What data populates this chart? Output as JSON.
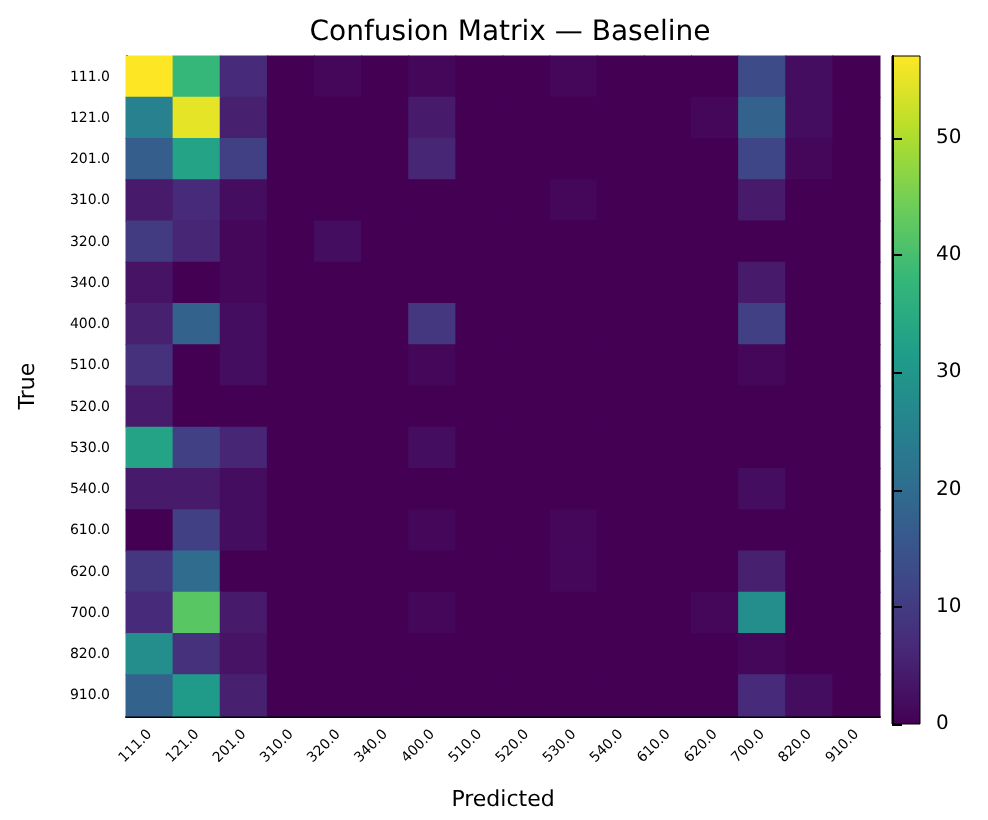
{
  "chart_data": {
    "type": "heatmap",
    "title": "Confusion Matrix — Baseline",
    "xlabel": "Predicted",
    "ylabel": "True",
    "categories": [
      "111.0",
      "121.0",
      "201.0",
      "310.0",
      "320.0",
      "340.0",
      "400.0",
      "510.0",
      "520.0",
      "530.0",
      "540.0",
      "610.0",
      "620.0",
      "700.0",
      "820.0",
      "910.0"
    ],
    "y_categories": [
      "111.0",
      "121.0",
      "201.0",
      "310.0",
      "320.0",
      "340.0",
      "400.0",
      "510.0",
      "520.0",
      "530.0",
      "540.0",
      "610.0",
      "620.0",
      "700.0",
      "820.0",
      "910.0"
    ],
    "cells": [
      [
        57,
        38,
        7,
        0,
        1,
        0,
        1,
        0,
        0,
        1,
        0,
        0,
        0,
        13,
        2,
        0
      ],
      [
        25,
        55,
        5,
        0,
        0,
        0,
        4,
        0,
        0,
        0,
        0,
        0,
        1,
        18,
        2,
        0
      ],
      [
        17,
        33,
        11,
        0,
        0,
        0,
        6,
        0,
        0,
        0,
        0,
        0,
        0,
        12,
        1,
        0
      ],
      [
        4,
        7,
        2,
        0,
        0,
        0,
        0,
        0,
        0,
        1,
        0,
        0,
        0,
        4,
        0,
        0
      ],
      [
        10,
        6,
        1,
        0,
        2,
        0,
        0,
        0,
        0,
        0,
        0,
        0,
        0,
        0,
        0,
        0
      ],
      [
        3,
        0,
        1,
        0,
        0,
        0,
        0,
        0,
        0,
        0,
        0,
        0,
        0,
        4,
        0,
        0
      ],
      [
        5,
        18,
        2,
        0,
        0,
        0,
        9,
        0,
        0,
        0,
        0,
        0,
        0,
        11,
        0,
        0
      ],
      [
        8,
        0,
        2,
        0,
        0,
        0,
        1,
        0,
        0,
        0,
        0,
        0,
        0,
        1,
        0,
        0
      ],
      [
        4,
        0,
        0,
        0,
        0,
        0,
        0,
        0,
        0,
        0,
        0,
        0,
        0,
        0,
        0,
        0
      ],
      [
        33,
        11,
        6,
        0,
        0,
        0,
        2,
        0,
        0,
        0,
        0,
        0,
        0,
        0,
        0,
        0
      ],
      [
        4,
        4,
        2,
        0,
        0,
        0,
        0,
        0,
        0,
        0,
        0,
        0,
        0,
        2,
        0,
        0
      ],
      [
        0,
        11,
        2,
        0,
        0,
        0,
        1,
        0,
        0,
        1,
        0,
        0,
        0,
        0,
        0,
        0
      ],
      [
        9,
        20,
        0,
        0,
        0,
        0,
        0,
        0,
        0,
        1,
        0,
        0,
        0,
        5,
        0,
        0
      ],
      [
        7,
        42,
        4,
        0,
        0,
        0,
        1,
        0,
        0,
        0,
        0,
        0,
        1,
        28,
        0,
        0
      ],
      [
        28,
        8,
        3,
        0,
        0,
        0,
        0,
        0,
        0,
        0,
        0,
        0,
        0,
        1,
        0,
        0
      ],
      [
        18,
        31,
        5,
        0,
        0,
        0,
        0,
        0,
        0,
        0,
        0,
        0,
        0,
        7,
        2,
        0
      ]
    ],
    "clim": [
      0,
      57
    ],
    "cticks": [
      0,
      10,
      20,
      30,
      40,
      50
    ]
  }
}
